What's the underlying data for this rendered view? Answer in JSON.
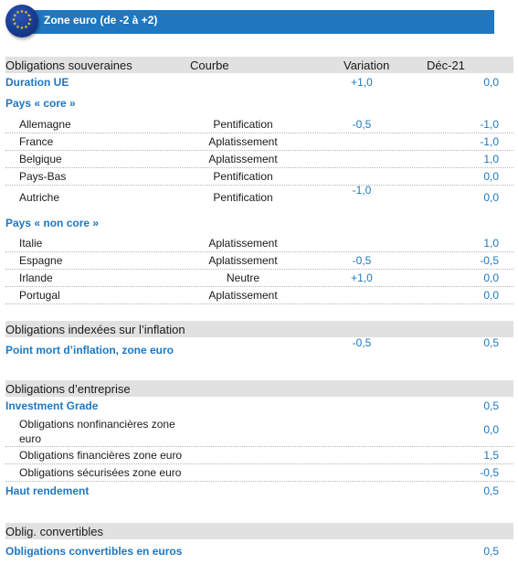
{
  "banner": {
    "title": "Zone euro (de -2 à +2)"
  },
  "headers": {
    "gov": {
      "col1": "Obligations souveraines",
      "col2": "Courbe",
      "col3": "Variation",
      "col4": "Déc-21"
    },
    "inflation": "Obligations indexées sur l’inflation",
    "corporate": "Obligations d’entreprise",
    "convertibles": "Oblig. convertibles"
  },
  "rows": {
    "duration": {
      "label": "Duration UE",
      "variation": "+1,0",
      "dec": "0,0"
    },
    "core_title": "Pays « core »",
    "allemagne": {
      "label": "Allemagne",
      "courbe": "Pentification",
      "variation": "-0,5",
      "dec": "-1,0"
    },
    "france": {
      "label": "France",
      "courbe": "Aplatissement",
      "dec": "-1,0"
    },
    "belgique": {
      "label": "Belgique",
      "courbe": "Aplatissement",
      "dec": "1,0"
    },
    "paysbas": {
      "label": "Pays-Bas",
      "courbe": "Pentification",
      "dec": "0,0"
    },
    "autriche": {
      "label": "Autriche",
      "courbe": "Pentification",
      "variation": "-1,0",
      "dec": "0,0"
    },
    "noncore_title": "Pays « non core »",
    "italie": {
      "label": "Italie",
      "courbe": "Aplatissement",
      "dec": "1,0"
    },
    "espagne": {
      "label": "Espagne",
      "courbe": "Aplatissement",
      "variation": "-0,5",
      "dec": "-0,5"
    },
    "irlande": {
      "label": "Irlande",
      "courbe": "Neutre",
      "variation": "+1,0",
      "dec": "0,0"
    },
    "portugal": {
      "label": "Portugal",
      "courbe": "Aplatissement",
      "dec": "0,0"
    },
    "pointmort": {
      "label": "Point mort d’inflation, zone euro",
      "variation": "-0,5",
      "dec": "0,5"
    },
    "ig": {
      "label": "Investment Grade",
      "dec": "0,5"
    },
    "nonfin": {
      "label": "Obligations nonfinancières zone euro",
      "dec": "0,0"
    },
    "fin": {
      "label": "Obligations financières zone euro",
      "dec": "1,5"
    },
    "secur": {
      "label": "Obligations sécurisées zone euro",
      "dec": "-0,5"
    },
    "hy": {
      "label": "Haut rendement",
      "dec": "0,5"
    },
    "conv": {
      "label": "Obligations convertibles en euros",
      "dec": "0,5"
    }
  },
  "colors": {
    "accent": "#1f77c0",
    "header_bg": "#e1e1e1"
  }
}
